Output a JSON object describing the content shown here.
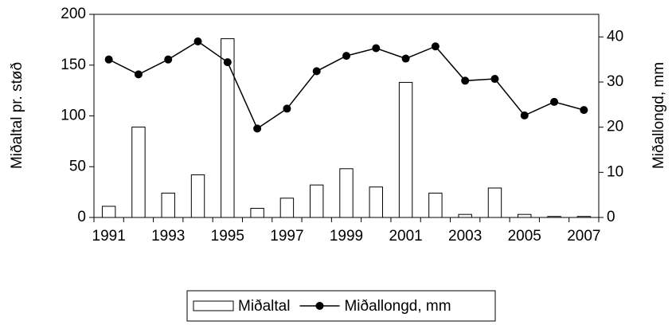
{
  "chart_data": {
    "type": "bar",
    "ylabel": "Miðaltal pr. støð",
    "y2label": "Miðallongd, mm",
    "categories": [
      "1991",
      null,
      "1993",
      null,
      "1995",
      null,
      "1997",
      null,
      "1999",
      null,
      "2001",
      null,
      "2003",
      null,
      "2005",
      null,
      "2007"
    ],
    "series": [
      {
        "name": "Miðaltal",
        "type": "bar",
        "color": "#ffffff",
        "values": [
          11,
          89,
          24,
          42,
          176,
          9,
          19,
          32,
          48,
          30,
          133,
          24,
          3,
          29,
          3,
          1,
          1
        ]
      },
      {
        "name": "Miðallongd, mm",
        "type": "line",
        "axis": "y2",
        "color": "#000000",
        "values": [
          35,
          31.7,
          35,
          39,
          34.4,
          19.7,
          24.1,
          32.4,
          35.8,
          37.5,
          35.2,
          37.9,
          30.3,
          30.7,
          22.6,
          25.6,
          23.8
        ]
      }
    ],
    "ylim": [
      0,
      200
    ],
    "yticks": [
      0,
      50,
      100,
      150,
      200
    ],
    "y2lim": [
      0,
      45
    ],
    "y2ticks": [
      0,
      10,
      20,
      30,
      40
    ],
    "grid": false,
    "legend": "bottom"
  }
}
